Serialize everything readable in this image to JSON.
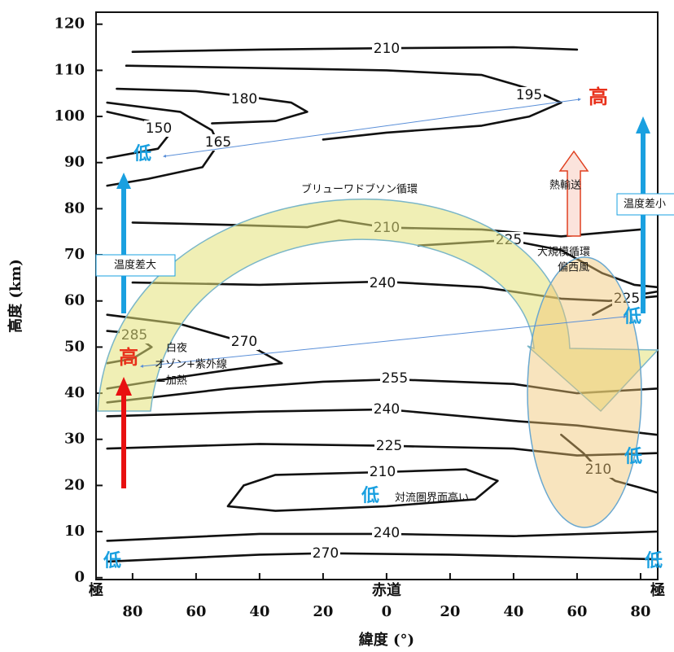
{
  "chart_data": {
    "type": "contour",
    "xlabel": "緯度 (°)",
    "ylabel": "高度 (km)",
    "pole_label": "極",
    "equator_label": "赤道",
    "xlim": [
      -91.5,
      85.4
    ],
    "ylim": [
      -0.4,
      122.6
    ],
    "xticks": [
      {
        "value": -80,
        "label": "80"
      },
      {
        "value": -60,
        "label": "60"
      },
      {
        "value": -40,
        "label": "40"
      },
      {
        "value": -20,
        "label": "20"
      },
      0,
      20,
      40,
      60,
      80
    ],
    "yticks": [
      0,
      10,
      20,
      30,
      40,
      50,
      60,
      70,
      80,
      90,
      100,
      110,
      120
    ],
    "line_color": "#111111",
    "contours": [
      {
        "level": 210,
        "x": [
          -80,
          -40,
          0,
          40,
          60
        ],
        "y": [
          114,
          114.5,
          114.8,
          115,
          114.5
        ]
      },
      {
        "level": 195,
        "x": [
          -82,
          -40,
          0,
          30,
          45,
          55,
          45,
          30,
          0,
          -20
        ],
        "y": [
          111,
          110.5,
          110,
          109,
          106,
          103,
          100,
          98,
          96.5,
          95
        ]
      },
      {
        "level": 180,
        "x": [
          -85,
          -60,
          -44,
          -30,
          -25,
          -35,
          -55
        ],
        "y": [
          106,
          105.5,
          104.3,
          103,
          101,
          99,
          98.5
        ]
      },
      {
        "level": 150,
        "x": [
          -88,
          -75,
          -68,
          -72,
          -88
        ],
        "y": [
          101,
          99,
          96.5,
          93,
          91
        ]
      },
      {
        "level": 165,
        "x": [
          -88,
          -65,
          -55,
          -53,
          -58,
          -75,
          -88
        ],
        "y": [
          103,
          101,
          97,
          94,
          89,
          86.5,
          85
        ]
      },
      {
        "level": 210,
        "x": [
          -80,
          -50,
          -25,
          -15,
          0,
          30,
          55,
          80
        ],
        "y": [
          77,
          76.5,
          76,
          77.5,
          75.9,
          75.5,
          74,
          75.5
        ]
      },
      {
        "level": 225,
        "x": [
          10,
          38.5,
          55,
          68,
          78,
          85
        ],
        "y": [
          72,
          73.2,
          71,
          66,
          63.5,
          63
        ]
      },
      {
        "level": 240,
        "x": [
          -80,
          -40,
          -1.3,
          30,
          55,
          70,
          85
        ],
        "y": [
          64,
          63.5,
          64.2,
          63,
          60.5,
          60,
          61
        ]
      },
      {
        "level": 285,
        "x": [
          -88,
          -80,
          -74,
          -80,
          -88
        ],
        "y": [
          53.5,
          53,
          50,
          47.5,
          46.5
        ]
      },
      {
        "level": 270,
        "x": [
          -88,
          -65,
          -45,
          -33,
          -50,
          -70,
          -88
        ],
        "y": [
          57,
          55,
          51.1,
          46.5,
          45,
          43,
          41
        ]
      },
      {
        "level": 255,
        "x": [
          -88,
          -50,
          -20,
          2.6,
          40,
          60,
          85
        ],
        "y": [
          38,
          41,
          42.5,
          43,
          42,
          40,
          41
        ]
      },
      {
        "level": 240,
        "x": [
          -88,
          -40,
          0,
          40,
          60,
          85
        ],
        "y": [
          35,
          36,
          36.5,
          34,
          33,
          31
        ]
      },
      {
        "level": 225,
        "x": [
          -88,
          -40,
          0.8,
          40,
          60,
          85
        ],
        "y": [
          28,
          29,
          28.6,
          28,
          26.5,
          27
        ]
      },
      {
        "level": 210,
        "x": [
          -45,
          -35,
          -1.3,
          25,
          35,
          28,
          0,
          -35,
          -50,
          -45
        ],
        "y": [
          20,
          22.3,
          22.9,
          23.5,
          21,
          17,
          15.5,
          14.5,
          15.5,
          20
        ]
      },
      {
        "level": 210,
        "x": [
          55,
          62,
          66.7,
          72,
          80,
          85
        ],
        "y": [
          31,
          27,
          23.5,
          21,
          19.5,
          18.5
        ]
      },
      {
        "level": 240,
        "x": [
          -88,
          -40,
          0,
          40,
          85
        ],
        "y": [
          8,
          9.5,
          9.5,
          9,
          10
        ]
      },
      {
        "level": 270,
        "x": [
          -88,
          -40,
          -19.2,
          20,
          85
        ],
        "y": [
          3.5,
          5,
          5.3,
          5,
          4
        ]
      },
      {
        "level": 225,
        "x": [
          65,
          75.6,
          85
        ],
        "y": [
          57,
          60.9,
          62
        ]
      }
    ]
  },
  "annotations": {
    "low": "低",
    "high": "高",
    "big_diff": "温度差大",
    "small_diff": "温度差小",
    "brewer": "ブリューワドブソン循環",
    "heat": "熱輸送",
    "large": "大規模循環",
    "westerly": "偏西風",
    "white_night": "白夜",
    "ozone": "オゾン+紫外線",
    "heating": "=加熱",
    "tropo": "対流圏界面高い"
  }
}
